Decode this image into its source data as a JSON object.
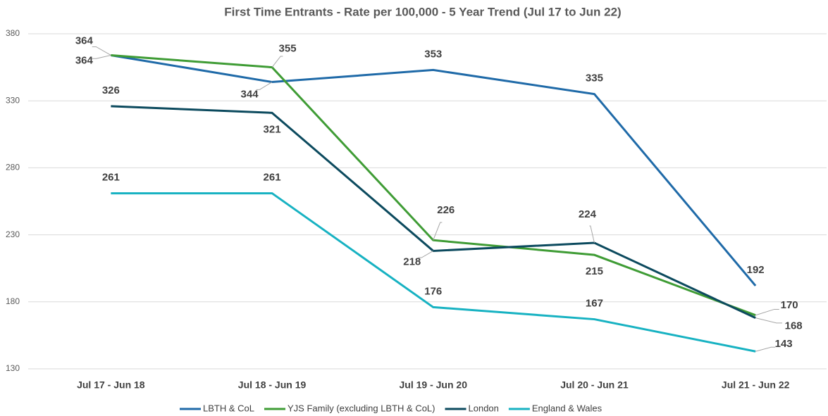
{
  "chart_data": {
    "type": "line",
    "title": "First Time Entrants - Rate per 100,000 - 5 Year Trend (Jul 17 to Jun 22)",
    "categories": [
      "Jul 17 - Jun 18",
      "Jul 18 - Jun 19",
      "Jul 19 - Jun 20",
      "Jul 20 - Jun 21",
      "Jul 21 - Jun 22"
    ],
    "series": [
      {
        "name": "LBTH & CoL",
        "color": "#1f6aa8",
        "values": [
          364,
          344,
          353,
          335,
          192
        ]
      },
      {
        "name": "YJS Family (excluding LBTH & CoL)",
        "color": "#3f9c35",
        "values": [
          364,
          355,
          226,
          215,
          170
        ]
      },
      {
        "name": "London",
        "color": "#0c4a5e",
        "values": [
          326,
          321,
          218,
          224,
          168
        ]
      },
      {
        "name": "England & Wales",
        "color": "#17b2c2",
        "values": [
          261,
          261,
          176,
          167,
          143
        ]
      }
    ],
    "ylim": [
      130,
      380
    ],
    "yticks": [
      130,
      180,
      230,
      280,
      330,
      380
    ],
    "grid": true,
    "legend": "bottom"
  }
}
